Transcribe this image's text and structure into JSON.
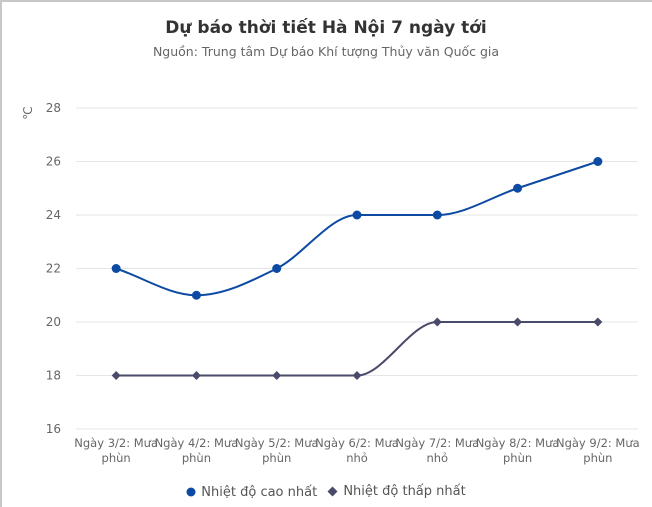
{
  "title": "Dự báo thời tiết Hà Nội 7 ngày tới",
  "subtitle": "Nguồn: Trung tâm Dự báo Khí tượng Thủy văn Quốc gia",
  "y_unit": "℃",
  "legend": {
    "high_label": "Nhiệt độ cao nhất",
    "low_label": "Nhiệt độ thấp nhất"
  },
  "colors": {
    "high": "#0d4aa3",
    "low": "#4a4a6a",
    "grid": "#e6e6e6",
    "text": "#666666"
  },
  "chart_data": {
    "type": "line",
    "title": "Dự báo thời tiết Hà Nội 7 ngày tới",
    "subtitle": "Nguồn: Trung tâm Dự báo Khí tượng Thủy văn Quốc gia",
    "xlabel": "",
    "ylabel": "℃",
    "ylim": [
      16,
      28
    ],
    "yticks": [
      16,
      18,
      20,
      22,
      24,
      26,
      28
    ],
    "grid": true,
    "legend_position": "bottom",
    "categories": [
      "Ngày 3/2: Mưa phùn",
      "Ngày 4/2: Mưa phùn",
      "Ngày 5/2: Mưa phùn",
      "Ngày 6/2: Mưa nhỏ",
      "Ngày 7/2: Mưa nhỏ",
      "Ngày 8/2: Mưa phùn",
      "Ngày 9/2: Mưa phùn"
    ],
    "category_lines": [
      [
        "Ngày 3/2: Mưa",
        "phùn"
      ],
      [
        "Ngày 4/2: Mưa",
        "phùn"
      ],
      [
        "Ngày 5/2: Mưa",
        "phùn"
      ],
      [
        "Ngày 6/2: Mưa",
        "nhỏ"
      ],
      [
        "Ngày 7/2: Mưa",
        "nhỏ"
      ],
      [
        "Ngày 8/2: Mưa",
        "phùn"
      ],
      [
        "Ngày 9/2: Mưa",
        "phùn"
      ]
    ],
    "series": [
      {
        "name": "Nhiệt độ cao nhất",
        "values": [
          22,
          21,
          22,
          24,
          24,
          25,
          26
        ],
        "color": "#0d4aa3",
        "marker": "circle"
      },
      {
        "name": "Nhiệt độ thấp nhất",
        "values": [
          18,
          18,
          18,
          18,
          20,
          20,
          20
        ],
        "color": "#4a4a6a",
        "marker": "diamond"
      }
    ]
  }
}
